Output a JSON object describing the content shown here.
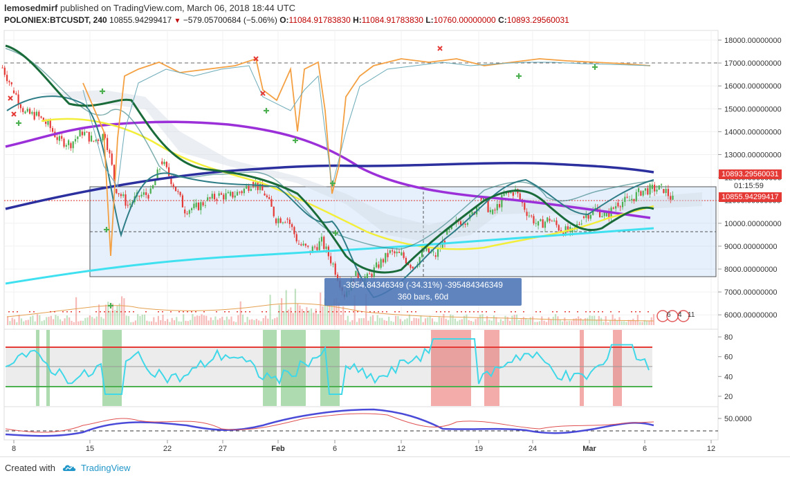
{
  "header": {
    "author": "lemosedmirf",
    "published_text": "published on TradingView.com, March 06, 2018 18:44 UTC",
    "symbol": "POLONIEX:BTCUSDT, 240",
    "last_price": "10855.94299417",
    "change": "−579.05700684 (−5.06%)",
    "o_label": "O:",
    "o_value": "11084.91783830",
    "h_label": "H:",
    "h_value": "11084.91783830",
    "l_label": "L:",
    "l_value": "10760.00000000",
    "c_label": "C:",
    "c_value": "10893.29560031"
  },
  "price_tags": {
    "close": "10893.29560031",
    "countdown": "01:15:59",
    "last": "10855.94299417"
  },
  "measure": {
    "line1": "-3954.84346349 (-34.31%) -395484346349",
    "line2": "360 bars, 60d"
  },
  "events": {
    "e1": "6",
    "e2": "4",
    "e3": "11"
  },
  "footer": {
    "created_with": "Created with",
    "brand": "TradingView"
  },
  "colors": {
    "up": "#4caf50",
    "down": "#e53935",
    "ma_purple": "#9b30d9",
    "ma_navy": "#2c2f9e",
    "ma_yellow": "#f2ee3a",
    "ma_cyan": "#3fe0f0",
    "bb": "#2e7d87",
    "dark_green": "#1a6b3a",
    "rsi": "#40d8e8",
    "osc_blue": "#4a4ad8",
    "osc_red": "#e05050"
  },
  "chart_data": {
    "type": "candlestick",
    "symbol": "POLONIEX:BTCUSDT",
    "interval": "240",
    "x_ticks": [
      "8",
      "15",
      "22",
      "27",
      "Feb",
      "6",
      "12",
      "19",
      "24",
      "Mar",
      "6",
      "12"
    ],
    "y_ticks": [
      "18000.00000000",
      "17000.00000000",
      "16000.00000000",
      "15000.00000000",
      "14000.00000000",
      "13000.00000000",
      "12000.00000000",
      "11000.00000000",
      "10000.00000000",
      "9000.00000000",
      "8000.00000000",
      "7000.00000000",
      "6000.00000000"
    ],
    "ylim": [
      5500,
      18300
    ],
    "close_path": [
      [
        "2018-01-06",
        16800
      ],
      [
        "2018-01-07",
        15800
      ],
      [
        "2018-01-08",
        14800
      ],
      [
        "2018-01-09",
        14700
      ],
      [
        "2018-01-10",
        14300
      ],
      [
        "2018-01-11",
        13600
      ],
      [
        "2018-01-12",
        13500
      ],
      [
        "2018-01-13",
        14000
      ],
      [
        "2018-01-14",
        13600
      ],
      [
        "2018-01-15",
        13900
      ],
      [
        "2018-01-16",
        11500
      ],
      [
        "2018-01-17",
        10800
      ],
      [
        "2018-01-18",
        11200
      ],
      [
        "2018-01-19",
        11300
      ],
      [
        "2018-01-20",
        12700
      ],
      [
        "2018-01-21",
        11700
      ],
      [
        "2018-01-22",
        10600
      ],
      [
        "2018-01-23",
        10700
      ],
      [
        "2018-01-24",
        11000
      ],
      [
        "2018-01-25",
        11200
      ],
      [
        "2018-01-26",
        11200
      ],
      [
        "2018-01-27",
        11400
      ],
      [
        "2018-01-28",
        11800
      ],
      [
        "2018-01-29",
        11300
      ],
      [
        "2018-01-30",
        10200
      ],
      [
        "2018-01-31",
        10200
      ],
      [
        "2018-02-01",
        9100
      ],
      [
        "2018-02-02",
        8800
      ],
      [
        "2018-02-03",
        9200
      ],
      [
        "2018-02-04",
        8200
      ],
      [
        "2018-02-05",
        6900
      ],
      [
        "2018-02-06",
        7700
      ],
      [
        "2018-02-07",
        7600
      ],
      [
        "2018-02-08",
        8200
      ],
      [
        "2018-02-09",
        8700
      ],
      [
        "2018-02-10",
        8600
      ],
      [
        "2018-02-11",
        8100
      ],
      [
        "2018-02-12",
        8800
      ],
      [
        "2018-02-13",
        8600
      ],
      [
        "2018-02-14",
        9500
      ],
      [
        "2018-02-15",
        10100
      ],
      [
        "2018-02-16",
        10200
      ],
      [
        "2018-02-17",
        11100
      ],
      [
        "2018-02-18",
        10400
      ],
      [
        "2018-02-19",
        11200
      ],
      [
        "2018-02-20",
        11400
      ],
      [
        "2018-02-21",
        10500
      ],
      [
        "2018-02-22",
        9900
      ],
      [
        "2018-02-23",
        10200
      ],
      [
        "2018-02-24",
        9700
      ],
      [
        "2018-02-25",
        9600
      ],
      [
        "2018-02-26",
        10300
      ],
      [
        "2018-02-27",
        10600
      ],
      [
        "2018-02-28",
        10300
      ],
      [
        "2018-03-01",
        10900
      ],
      [
        "2018-03-02",
        11000
      ],
      [
        "2018-03-03",
        11400
      ],
      [
        "2018-03-04",
        11500
      ],
      [
        "2018-03-05",
        11500
      ],
      [
        "2018-03-06",
        10893
      ]
    ],
    "horizontal_lines": [
      17000
    ],
    "rectangle": {
      "from_date": "2018-01-15",
      "to_date": "2018-03-06",
      "top": 11500,
      "bottom": 7550
    },
    "oscillator_1": {
      "ticks": [
        "80",
        "60",
        "40",
        "20"
      ],
      "overbought": 70,
      "oversold": 30
    },
    "oscillator_2": {
      "ticks": [
        "50.0000"
      ]
    }
  }
}
